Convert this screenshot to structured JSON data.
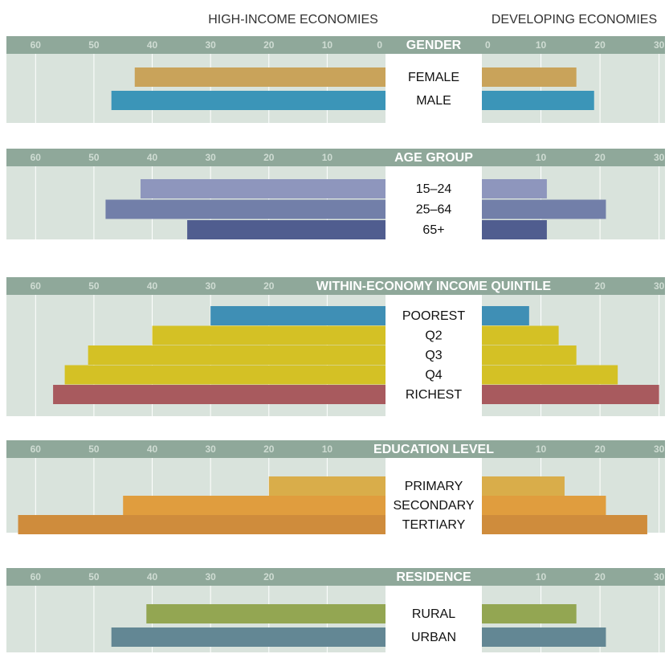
{
  "column_labels": {
    "left": "HIGH-INCOME ECONOMIES",
    "right": "DEVELOPING ECONOMIES"
  },
  "chart_data": [
    {
      "type": "bar",
      "title": "GENDER",
      "categories": [
        "FEMALE",
        "MALE"
      ],
      "series": [
        {
          "values": [
            43,
            47
          ]
        },
        {
          "values": [
            16,
            19
          ]
        }
      ],
      "colors": [
        "#c9a35a",
        "#3b95b8"
      ],
      "xlim": [
        65,
        0
      ],
      "xticks": [
        60,
        50,
        40,
        30,
        20,
        10,
        0
      ],
      "x2lim": [
        0,
        31
      ],
      "x2ticks": [
        0,
        10,
        20,
        30
      ]
    },
    {
      "type": "bar",
      "title": "AGE GROUP",
      "categories": [
        "15–24",
        "25–64",
        "65+"
      ],
      "series": [
        {
          "values": [
            42,
            48,
            34
          ]
        },
        {
          "values": [
            11,
            21,
            11
          ]
        }
      ],
      "colors": [
        "#8e96bd",
        "#727fa9",
        "#505d8f"
      ],
      "xlim": [
        65,
        0
      ],
      "xticks": [
        60,
        50,
        40,
        30,
        20,
        10
      ],
      "x2lim": [
        0,
        31
      ],
      "x2ticks": [
        10,
        20,
        30
      ]
    },
    {
      "type": "bar",
      "title": "WITHIN-ECONOMY INCOME QUINTILE",
      "categories": [
        "POOREST",
        "Q2",
        "Q3",
        "Q4",
        "RICHEST"
      ],
      "series": [
        {
          "values": [
            30,
            40,
            51,
            55,
            57
          ]
        },
        {
          "values": [
            8,
            13,
            16,
            23,
            30
          ]
        }
      ],
      "colors": [
        "#3f8fb5",
        "#d4c125",
        "#d4c125",
        "#d4c125",
        "#a85a5e"
      ],
      "xlim": [
        65,
        0
      ],
      "xticks": [
        60,
        50,
        40,
        30,
        20
      ],
      "x2lim": [
        0,
        31
      ],
      "x2ticks": [
        20,
        30
      ]
    },
    {
      "type": "bar",
      "title": "EDUCATION LEVEL",
      "categories": [
        "PRIMARY",
        "SECONDARY",
        "TERTIARY"
      ],
      "series": [
        {
          "values": [
            20,
            45,
            63
          ]
        },
        {
          "values": [
            14,
            21,
            28
          ]
        }
      ],
      "colors": [
        "#d9ad4a",
        "#e09d3e",
        "#cf8c3c"
      ],
      "xlim": [
        65,
        0
      ],
      "xticks": [
        60,
        50,
        40,
        30,
        20,
        10
      ],
      "x2lim": [
        0,
        31
      ],
      "x2ticks": [
        10,
        20,
        30
      ]
    },
    {
      "type": "bar",
      "title": "RESIDENCE",
      "categories": [
        "RURAL",
        "URBAN"
      ],
      "series": [
        {
          "values": [
            41,
            47
          ]
        },
        {
          "values": [
            16,
            21
          ]
        }
      ],
      "colors": [
        "#93a652",
        "#638794"
      ],
      "xlim": [
        65,
        0
      ],
      "xticks": [
        60,
        50,
        40,
        30,
        20
      ],
      "x2lim": [
        0,
        31
      ],
      "x2ticks": [
        10,
        20,
        30
      ]
    }
  ]
}
